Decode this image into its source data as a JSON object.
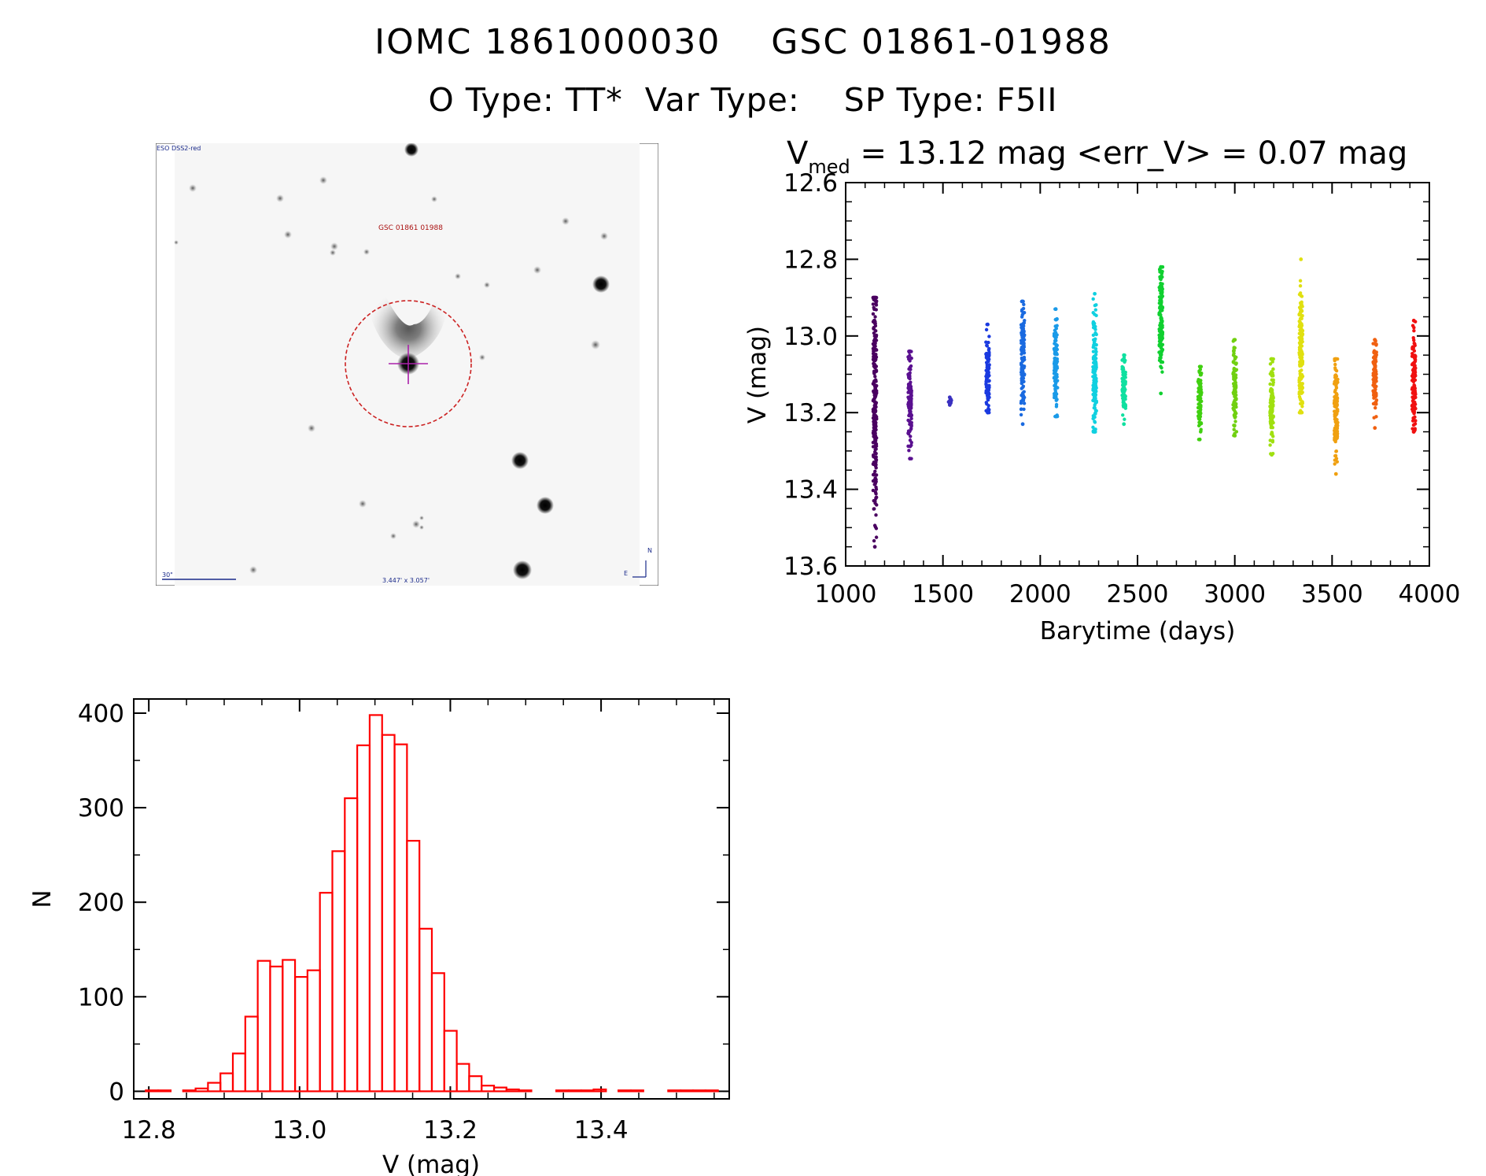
{
  "header": {
    "line1": "IOMC 1861000030    GSC 01861-01988",
    "line2": "O Type: TT*  Var Type:    SP Type: F5II"
  },
  "stamp": {
    "survey_label": "ESO DSS2-red",
    "object_label": "GSC 01861 01988",
    "scale_label": "30\"",
    "size_label": "3.447' x 3.057'",
    "compass_n": "N",
    "compass_e": "E"
  },
  "lightcurve": {
    "title_prefix": "V",
    "title_subscript": "med",
    "title_rest": " = 13.12 mag <err_V> = 0.07 mag"
  },
  "colors": {
    "histogram": "#ff0000",
    "circle": "#cc2222",
    "crosshair": "#aa22aa",
    "label_blue": "#1a2a8a"
  },
  "chart_data": [
    {
      "type": "scatter",
      "xlabel": "Barytime (days)",
      "ylabel": "V (mag)",
      "xlim": [
        1000,
        4000
      ],
      "ylim": [
        13.6,
        12.6
      ],
      "y_inverted": true,
      "x_ticks": [
        1000,
        1500,
        2000,
        2500,
        3000,
        3500,
        4000
      ],
      "y_ticks": [
        "12.6",
        "12.8",
        "13.0",
        "13.2",
        "13.4",
        "13.6"
      ],
      "series": [
        {
          "x": 1150,
          "ymin": 12.9,
          "ymax": 13.55,
          "center": 13.15,
          "color": "#4a0060"
        },
        {
          "x": 1330,
          "ymin": 13.04,
          "ymax": 13.32,
          "center": 13.17,
          "color": "#5a1090"
        },
        {
          "x": 1535,
          "ymin": 13.16,
          "ymax": 13.18,
          "center": 13.17,
          "color": "#3a30c0"
        },
        {
          "x": 1730,
          "ymin": 12.97,
          "ymax": 13.2,
          "center": 13.1,
          "color": "#1a3ae0"
        },
        {
          "x": 1910,
          "ymin": 12.91,
          "ymax": 13.23,
          "center": 13.05,
          "color": "#1a6ae0"
        },
        {
          "x": 2080,
          "ymin": 12.93,
          "ymax": 13.21,
          "center": 13.08,
          "color": "#1a9ae8"
        },
        {
          "x": 2280,
          "ymin": 12.89,
          "ymax": 13.25,
          "center": 13.1,
          "color": "#10d0e0"
        },
        {
          "x": 2430,
          "ymin": 13.05,
          "ymax": 13.23,
          "center": 13.13,
          "color": "#10e0a0"
        },
        {
          "x": 2620,
          "ymin": 12.82,
          "ymax": 13.15,
          "center": 12.95,
          "color": "#10d030"
        },
        {
          "x": 2820,
          "ymin": 13.08,
          "ymax": 13.27,
          "center": 13.17,
          "color": "#40d010"
        },
        {
          "x": 3000,
          "ymin": 13.01,
          "ymax": 13.26,
          "center": 13.13,
          "color": "#70d010"
        },
        {
          "x": 3190,
          "ymin": 13.06,
          "ymax": 13.31,
          "center": 13.17,
          "color": "#a0e010"
        },
        {
          "x": 3340,
          "ymin": 12.8,
          "ymax": 13.2,
          "center": 13.05,
          "color": "#e0e010"
        },
        {
          "x": 3520,
          "ymin": 13.06,
          "ymax": 13.36,
          "center": 13.2,
          "color": "#f0a010"
        },
        {
          "x": 3720,
          "ymin": 13.01,
          "ymax": 13.24,
          "center": 13.11,
          "color": "#f06010"
        },
        {
          "x": 3920,
          "ymin": 12.96,
          "ymax": 13.25,
          "center": 13.12,
          "color": "#f01010"
        }
      ]
    },
    {
      "type": "bar",
      "style": "histogram-step",
      "xlabel": "V (mag)",
      "ylabel": "N",
      "xlim": [
        12.78,
        13.57
      ],
      "ylim": [
        -8,
        415
      ],
      "x_ticks": [
        "12.8",
        "13.0",
        "13.2",
        "13.4"
      ],
      "y_ticks": [
        0,
        100,
        200,
        300,
        400
      ],
      "bin_start": 12.796,
      "bin_width": 0.0165,
      "values": [
        1,
        1,
        0,
        1,
        3,
        9,
        19,
        40,
        79,
        138,
        132,
        139,
        121,
        128,
        210,
        254,
        310,
        366,
        398,
        377,
        367,
        265,
        172,
        125,
        64,
        29,
        16,
        6,
        4,
        2,
        1,
        0,
        0,
        1,
        1,
        1,
        2,
        0,
        1,
        1,
        0,
        0,
        1,
        1,
        1,
        1,
        1,
        0,
        0,
        0
      ]
    }
  ]
}
